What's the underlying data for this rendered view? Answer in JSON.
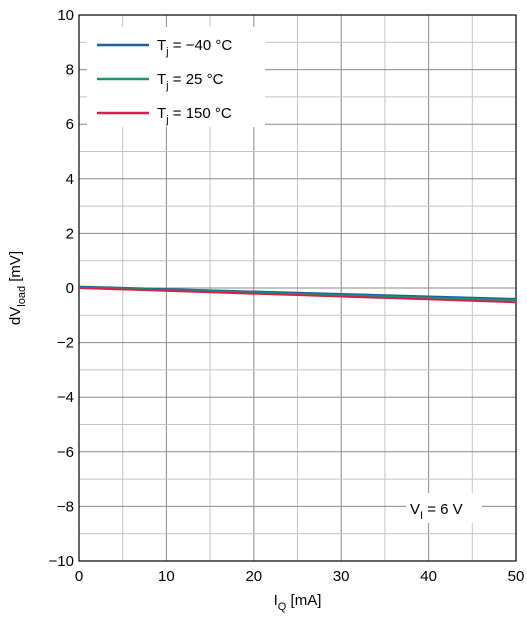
{
  "chart_data": {
    "type": "line",
    "xlabel": {
      "main": "I",
      "sub": "Q",
      "unit": " [mA]"
    },
    "ylabel": {
      "main": "dV",
      "sub": "load",
      "unit": " [mV]"
    },
    "xlim": [
      0,
      50
    ],
    "ylim": [
      -10,
      10
    ],
    "x_ticks": [
      0,
      10,
      20,
      30,
      40,
      50
    ],
    "y_ticks": [
      -10,
      -8,
      -6,
      -4,
      -2,
      0,
      2,
      4,
      6,
      8,
      10
    ],
    "x_minor_step": 5,
    "y_minor_step": 1,
    "grid": true,
    "legend_position": "top-left",
    "series": [
      {
        "name_main": "T",
        "name_sub": "j",
        "name_rest": " = −40 °C",
        "color": "#1f5fa0",
        "x": [
          0,
          50
        ],
        "y": [
          0.05,
          -0.4
        ]
      },
      {
        "name_main": "T",
        "name_sub": "j",
        "name_rest": " = 25 °C",
        "color": "#12996b",
        "x": [
          0,
          50
        ],
        "y": [
          0.02,
          -0.45
        ]
      },
      {
        "name_main": "T",
        "name_sub": "j",
        "name_rest": " = 150 °C",
        "color": "#d6204b",
        "x": [
          0,
          50
        ],
        "y": [
          0.0,
          -0.52
        ]
      }
    ],
    "annotation": {
      "main": "V",
      "sub": "I",
      "rest": " = 6 V"
    }
  }
}
